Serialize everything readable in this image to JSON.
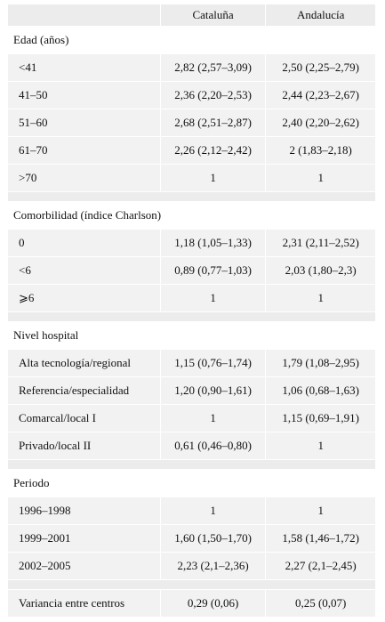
{
  "header": {
    "col1": "",
    "col2": "Cataluña",
    "col3": "Andalucía"
  },
  "sections": [
    {
      "title": "Edad (años)",
      "rows": [
        {
          "label": "<41",
          "cat": "2,82 (2,57–3,09)",
          "and": "2,50 (2,25–2,79)"
        },
        {
          "label": "41–50",
          "cat": "2,36 (2,20–2,53)",
          "and": "2,44 (2,23–2,67)"
        },
        {
          "label": "51–60",
          "cat": "2,68 (2,51–2,87)",
          "and": "2,40 (2,20–2,62)"
        },
        {
          "label": "61–70",
          "cat": "2,26 (2,12–2,42)",
          "and": "2 (1,83–2,18)"
        },
        {
          "label": ">70",
          "cat": "1",
          "and": "1"
        }
      ]
    },
    {
      "title": "Comorbilidad (índice Charlson)",
      "rows": [
        {
          "label": "0",
          "cat": "1,18 (1,05–1,33)",
          "and": "2,31 (2,11–2,52)"
        },
        {
          "label": "<6",
          "cat": "0,89 (0,77–1,03)",
          "and": "2,03 (1,80–2,3)"
        },
        {
          "label": "⩾6",
          "cat": "1",
          "and": "1"
        }
      ]
    },
    {
      "title": "Nivel hospital",
      "rows": [
        {
          "label": "Alta tecnología/regional",
          "cat": "1,15 (0,76–1,74)",
          "and": "1,79 (1,08–2,95)"
        },
        {
          "label": "Referencia/especialidad",
          "cat": "1,20 (0,90–1,61)",
          "and": "1,06 (0,68–1,63)"
        },
        {
          "label": "Comarcal/local I",
          "cat": "1",
          "and": "1,15 (0,69–1,91)"
        },
        {
          "label": "Privado/local II",
          "cat": "0,61 (0,46–0,80)",
          "and": "1"
        }
      ]
    },
    {
      "title": "Periodo",
      "rows": [
        {
          "label": "1996–1998",
          "cat": "1",
          "and": "1"
        },
        {
          "label": "1999–2001",
          "cat": "1,60 (1,50–1,70)",
          "and": "1,58 (1,46–1,72)"
        },
        {
          "label": "2002–2005",
          "cat": "2,23 (2,1–2,36)",
          "and": "2,27 (2,1–2,45)"
        }
      ]
    }
  ],
  "footer": {
    "label": "Variancia entre centros",
    "cat": "0,29 (0,06)",
    "and": "0,25 (0,07)"
  }
}
